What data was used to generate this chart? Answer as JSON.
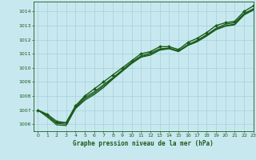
{
  "title": "Graphe pression niveau de la mer (hPa)",
  "bg_color": "#c8e8f0",
  "grid_color": "#aad4dc",
  "line_color": "#1a5c1a",
  "marker_color": "#1a5c1a",
  "xlim": [
    -0.5,
    23
  ],
  "ylim": [
    1005.5,
    1014.7
  ],
  "yticks": [
    1006,
    1007,
    1008,
    1009,
    1010,
    1011,
    1012,
    1013,
    1014
  ],
  "xticks": [
    0,
    1,
    2,
    3,
    4,
    5,
    6,
    7,
    8,
    9,
    10,
    11,
    12,
    13,
    14,
    15,
    16,
    17,
    18,
    19,
    20,
    21,
    22,
    23
  ],
  "lines": [
    {
      "y": [
        1007.0,
        1006.7,
        1006.2,
        1006.1,
        1007.3,
        1008.0,
        1008.5,
        1009.0,
        1009.5,
        1010.0,
        1010.5,
        1011.0,
        1011.15,
        1011.5,
        1011.5,
        1011.3,
        1011.8,
        1012.1,
        1012.5,
        1013.0,
        1013.2,
        1013.3,
        1014.0,
        1014.4
      ],
      "marker": true,
      "lw": 1.0
    },
    {
      "y": [
        1007.0,
        1006.6,
        1006.1,
        1006.1,
        1007.2,
        1007.9,
        1008.3,
        1008.8,
        1009.3,
        1009.85,
        1010.4,
        1010.85,
        1011.05,
        1011.35,
        1011.4,
        1011.2,
        1011.65,
        1011.95,
        1012.35,
        1012.8,
        1013.1,
        1013.2,
        1013.85,
        1014.2
      ],
      "marker": false,
      "lw": 0.9
    },
    {
      "y": [
        1007.0,
        1006.6,
        1006.05,
        1006.0,
        1007.15,
        1007.8,
        1008.2,
        1008.7,
        1009.25,
        1009.8,
        1010.35,
        1010.8,
        1010.95,
        1011.3,
        1011.38,
        1011.18,
        1011.6,
        1011.9,
        1012.3,
        1012.75,
        1013.0,
        1013.1,
        1013.8,
        1014.15
      ],
      "marker": false,
      "lw": 0.9
    },
    {
      "y": [
        1007.0,
        1006.5,
        1005.95,
        1005.9,
        1007.1,
        1007.7,
        1008.1,
        1008.6,
        1009.2,
        1009.75,
        1010.3,
        1010.75,
        1010.9,
        1011.25,
        1011.35,
        1011.15,
        1011.58,
        1011.85,
        1012.25,
        1012.7,
        1012.95,
        1013.05,
        1013.75,
        1014.1
      ],
      "marker": false,
      "lw": 0.9
    }
  ]
}
